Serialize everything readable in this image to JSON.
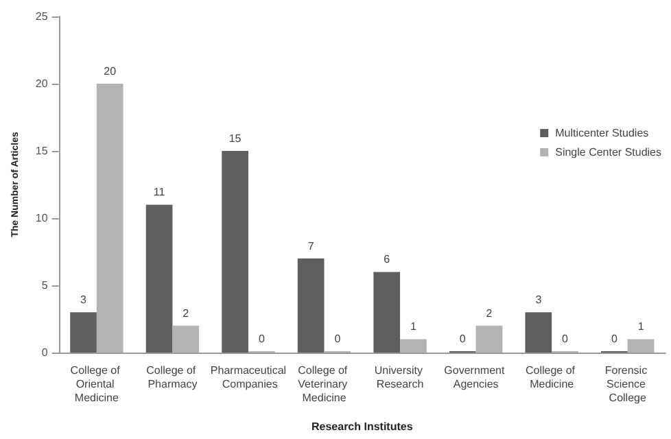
{
  "chart_data": {
    "type": "bar",
    "categories": [
      "College of Oriental Medicine",
      "College of Pharmacy",
      "Pharmaceutical Companies",
      "College of Veterinary Medicine",
      "University Research",
      "Government Agencies",
      "College of Medicine",
      "Forensic Science College"
    ],
    "series": [
      {
        "name": "Multicenter Studies",
        "color": "#5f5f5f",
        "values": [
          3,
          11,
          15,
          7,
          6,
          0,
          3,
          0
        ]
      },
      {
        "name": "Single Center Studies",
        "color": "#b3b3b3",
        "values": [
          20,
          2,
          0,
          0,
          1,
          2,
          0,
          1
        ]
      }
    ],
    "xlabel": "Research Institutes",
    "ylabel": "The Number of Articles",
    "ylim": [
      0,
      25
    ],
    "yticks": [
      0,
      5,
      10,
      15,
      20,
      25
    ],
    "data_labels": true,
    "grid": false,
    "legend": "right"
  }
}
